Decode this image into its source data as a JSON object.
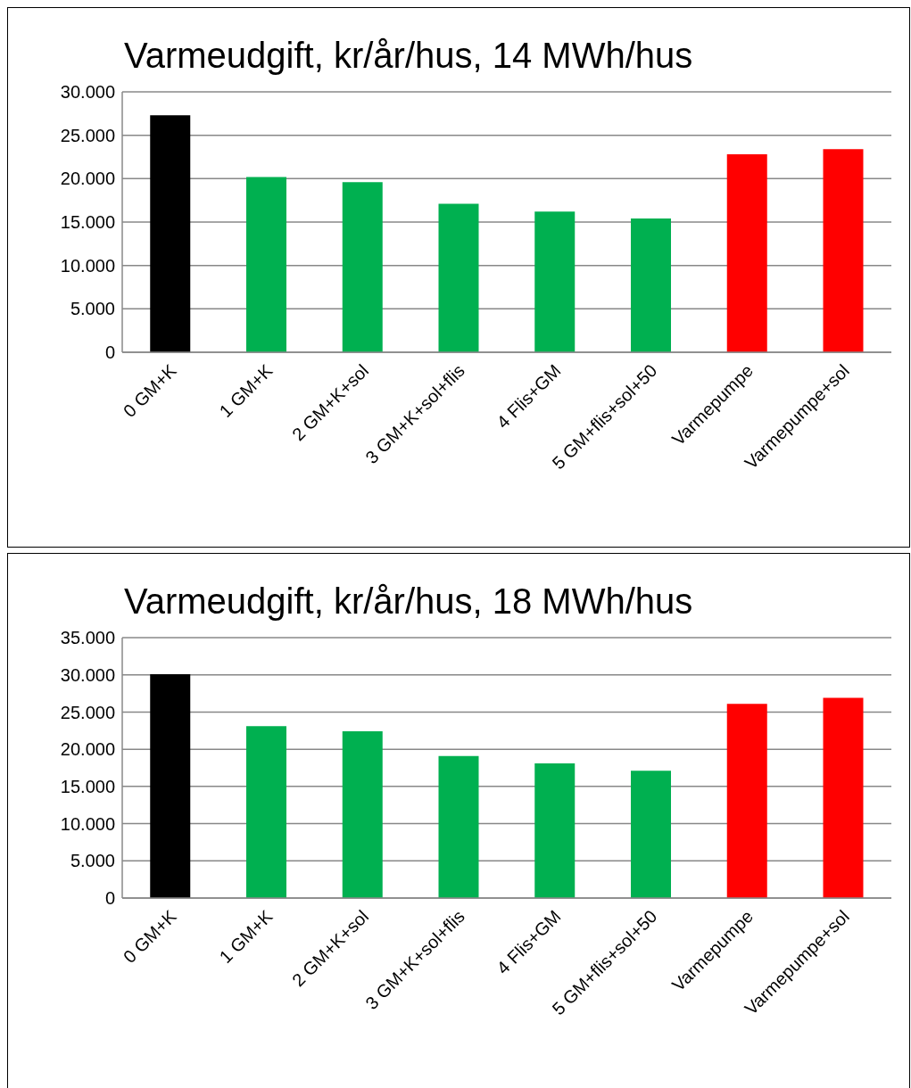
{
  "chart_data": [
    {
      "type": "bar",
      "title": "Varmeudgift, kr/år/hus, 14 MWh/hus",
      "categories": [
        "0 GM+K",
        "1 GM+K",
        "2 GM+K+sol",
        "3 GM+K+sol+flis",
        "4 Flis+GM",
        "5 GM+flis+sol+50",
        "Varmepumpe",
        "Varmepumpe+sol"
      ],
      "values": [
        27300,
        20200,
        19600,
        17100,
        16200,
        15400,
        22800,
        23400
      ],
      "colors": [
        "#000000",
        "#00b050",
        "#00b050",
        "#00b050",
        "#00b050",
        "#00b050",
        "#ff0000",
        "#ff0000"
      ],
      "ylim": [
        0,
        30000
      ],
      "yticks": [
        {
          "value": 0,
          "label": "0"
        },
        {
          "value": 5000,
          "label": "5.000"
        },
        {
          "value": 10000,
          "label": "10.000"
        },
        {
          "value": 15000,
          "label": "15.000"
        },
        {
          "value": 20000,
          "label": "20.000"
        },
        {
          "value": 25000,
          "label": "25.000"
        },
        {
          "value": 30000,
          "label": "30.000"
        }
      ],
      "grid": "y",
      "legend": false
    },
    {
      "type": "bar",
      "title": "Varmeudgift, kr/år/hus, 18 MWh/hus",
      "categories": [
        "0 GM+K",
        "1 GM+K",
        "2 GM+K+sol",
        "3 GM+K+sol+flis",
        "4 Flis+GM",
        "5 GM+flis+sol+50",
        "Varmepumpe",
        "Varmepumpe+sol"
      ],
      "values": [
        30100,
        23100,
        22400,
        19100,
        18100,
        17100,
        26100,
        26900
      ],
      "colors": [
        "#000000",
        "#00b050",
        "#00b050",
        "#00b050",
        "#00b050",
        "#00b050",
        "#ff0000",
        "#ff0000"
      ],
      "ylim": [
        0,
        35000
      ],
      "yticks": [
        {
          "value": 0,
          "label": "0"
        },
        {
          "value": 5000,
          "label": "5.000"
        },
        {
          "value": 10000,
          "label": "10.000"
        },
        {
          "value": 15000,
          "label": "15.000"
        },
        {
          "value": 20000,
          "label": "20.000"
        },
        {
          "value": 25000,
          "label": "25.000"
        },
        {
          "value": 30000,
          "label": "30.000"
        },
        {
          "value": 35000,
          "label": "35.000"
        }
      ],
      "grid": "y",
      "legend": false
    }
  ]
}
